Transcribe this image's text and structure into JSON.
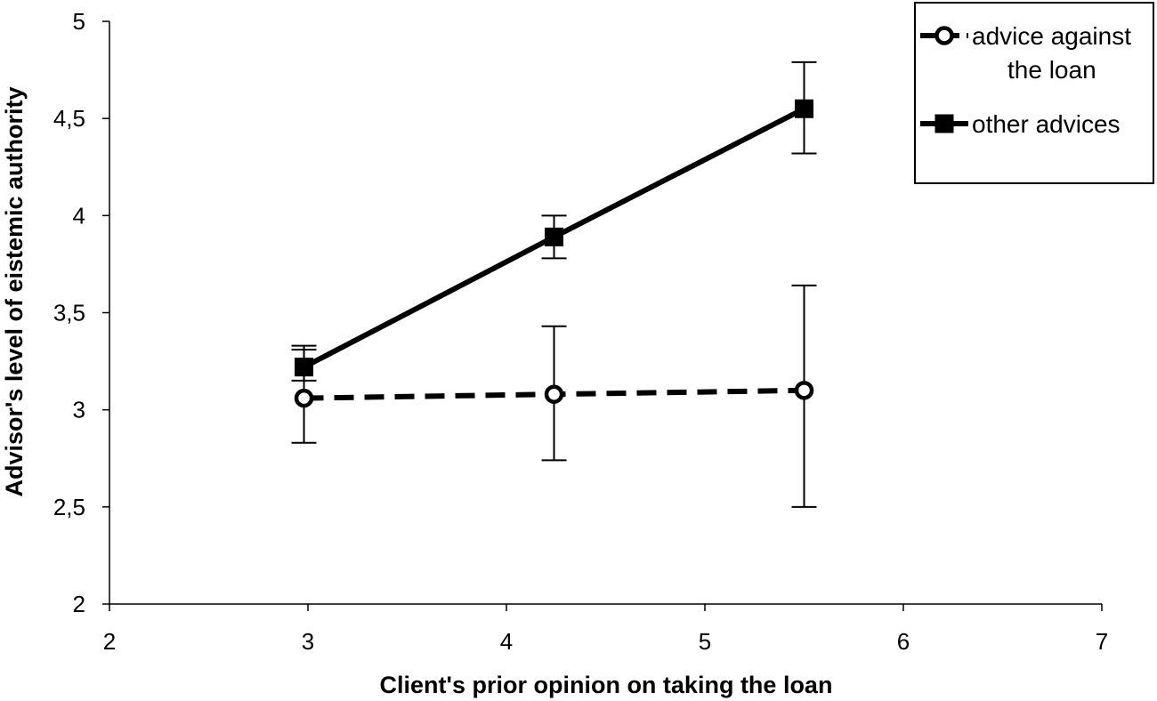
{
  "chart_data": {
    "type": "line",
    "xlabel": "Client's prior opinion on taking the loan",
    "ylabel": "Advisor's level of eistemic authority",
    "xlim": [
      2,
      7
    ],
    "ylim": [
      2,
      5
    ],
    "xticks": [
      2,
      3,
      4,
      5,
      6,
      7
    ],
    "xtick_labels": [
      "2",
      "3",
      "4",
      "5",
      "6",
      "7"
    ],
    "yticks": [
      2,
      2.5,
      3,
      3.5,
      4,
      4.5,
      5
    ],
    "ytick_labels": [
      "2",
      "2,5",
      "3",
      "3,5",
      "4",
      "4,5",
      "5"
    ],
    "grid": false,
    "legend_position": "top-right",
    "series": [
      {
        "name": "advice against the loan",
        "name_lines": [
          "advice against",
          "the loan"
        ],
        "line_style": "dashed",
        "marker": "open-circle",
        "color": "#000000",
        "x": [
          2.98,
          4.24,
          5.5
        ],
        "y": [
          3.06,
          3.08,
          3.1
        ],
        "err_low": [
          2.83,
          2.74,
          2.5
        ],
        "err_high": [
          3.31,
          3.43,
          3.64
        ]
      },
      {
        "name": "other advices",
        "name_lines": [
          "other advices"
        ],
        "line_style": "solid",
        "marker": "filled-square",
        "color": "#000000",
        "x": [
          2.98,
          4.24,
          5.5
        ],
        "y": [
          3.22,
          3.89,
          4.55
        ],
        "err_low": [
          3.15,
          3.78,
          4.32
        ],
        "err_high": [
          3.33,
          4.0,
          4.79
        ]
      }
    ]
  }
}
